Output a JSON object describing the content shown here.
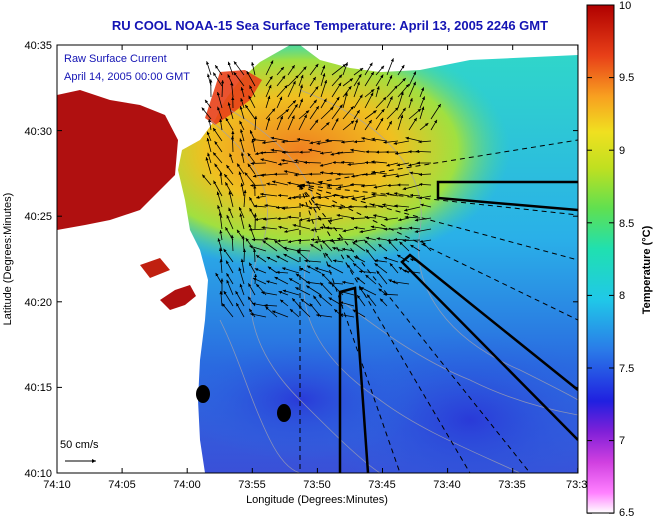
{
  "title": "RU COOL  NOAA-15  Sea Surface Temperature:  April 13, 2005 2246 GMT",
  "legend": {
    "line1": "Raw Surface Current",
    "line2": "April 14, 2005 00:00 GMT"
  },
  "scale_label": "50 cm/s",
  "x_axis": {
    "label": "Longitude (Degrees:Minutes)",
    "ticks": [
      "74:10",
      "74:05",
      "74:00",
      "73:55",
      "73:50",
      "73:45",
      "73:40",
      "73:35",
      "73:3"
    ]
  },
  "y_axis": {
    "label": "Latitude (Degrees:Minutes)",
    "ticks": [
      "40:35",
      "40:30",
      "40:25",
      "40:20",
      "40:15",
      "40:10"
    ]
  },
  "colorbar": {
    "label": "Temperature (°C)",
    "ticks": [
      "10",
      "9.5",
      "9",
      "8.5",
      "8",
      "7.5",
      "7",
      "6.5"
    ],
    "min": 6.5,
    "max": 10
  },
  "colors": {
    "title": "#1414b4",
    "land": "#ffffff",
    "warm": "#b01010",
    "cold": "#2a2ad0"
  }
}
